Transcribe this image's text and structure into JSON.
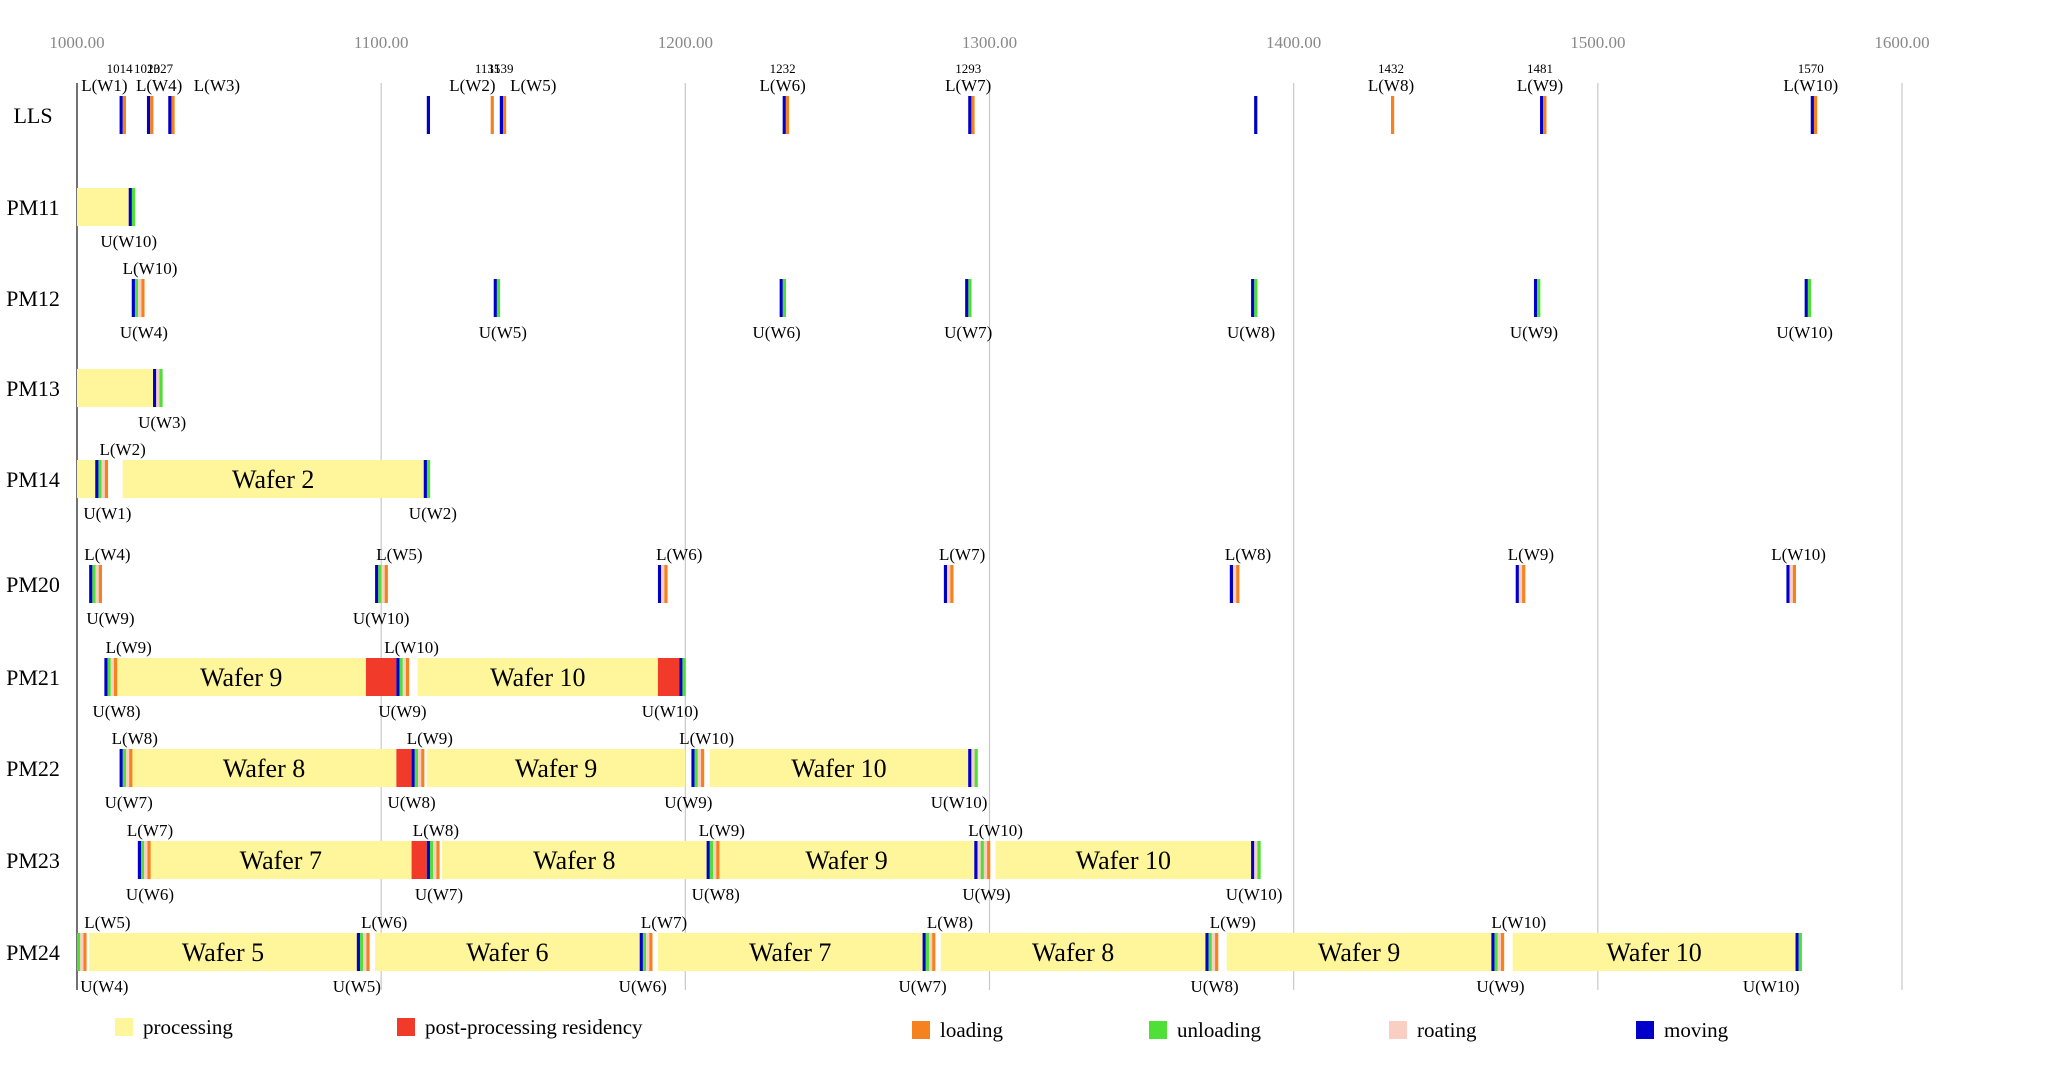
{
  "chart_data": {
    "type": "gantt",
    "xlim": [
      1000,
      1600
    ],
    "x_ticks": [
      "1000.00",
      "1100.00",
      "1200.00",
      "1300.00",
      "1400.00",
      "1500.00",
      "1600.00"
    ],
    "x_tick_values": [
      1000,
      1100,
      1200,
      1300,
      1400,
      1500,
      1600
    ],
    "grid": "vertical",
    "rows": [
      "LLS",
      "PM11",
      "PM12",
      "PM13",
      "PM14",
      "PM20",
      "PM21",
      "PM22",
      "PM23",
      "PM24"
    ],
    "colors": {
      "processing": "#FFF59A",
      "residency": "#F23A2B",
      "loading": "#F5821F",
      "unloading": "#4EE037",
      "rotating": "#F9CFC4",
      "moving": "#0000C8"
    },
    "legend": [
      {
        "key": "processing",
        "label": "processing"
      },
      {
        "key": "residency",
        "label": "post-processing residency"
      },
      {
        "key": "loading",
        "label": "loading"
      },
      {
        "key": "unloading",
        "label": "unloading"
      },
      {
        "key": "rotating",
        "label": "roating"
      },
      {
        "key": "moving",
        "label": "moving"
      }
    ],
    "segments": [
      {
        "row": "PM11",
        "start": 1000,
        "end": 1017,
        "type": "processing"
      },
      {
        "row": "PM13",
        "start": 1000,
        "end": 1026,
        "type": "processing"
      },
      {
        "row": "PM14",
        "start": 1000,
        "end": 1007,
        "type": "processing"
      },
      {
        "row": "PM14",
        "start": 1015,
        "end": 1114,
        "type": "processing",
        "label": "Wafer 2"
      },
      {
        "row": "PM21",
        "start": 1013,
        "end": 1095,
        "type": "processing",
        "label": "Wafer 9"
      },
      {
        "row": "PM21",
        "start": 1095,
        "end": 1105,
        "type": "residency"
      },
      {
        "row": "PM21",
        "start": 1112,
        "end": 1191,
        "type": "processing",
        "label": "Wafer 10"
      },
      {
        "row": "PM21",
        "start": 1191,
        "end": 1198,
        "type": "residency"
      },
      {
        "row": "PM22",
        "start": 1018,
        "end": 1105,
        "type": "processing",
        "label": "Wafer 8"
      },
      {
        "row": "PM22",
        "start": 1105,
        "end": 1110,
        "type": "residency"
      },
      {
        "row": "PM22",
        "start": 1115,
        "end": 1200,
        "type": "processing",
        "label": "Wafer 9"
      },
      {
        "row": "PM22",
        "start": 1208,
        "end": 1293,
        "type": "processing",
        "label": "Wafer 10"
      },
      {
        "row": "PM23",
        "start": 1024,
        "end": 1110,
        "type": "processing",
        "label": "Wafer 7"
      },
      {
        "row": "PM23",
        "start": 1110,
        "end": 1115,
        "type": "residency"
      },
      {
        "row": "PM23",
        "start": 1120,
        "end": 1207,
        "type": "processing",
        "label": "Wafer 8"
      },
      {
        "row": "PM23",
        "start": 1211,
        "end": 1295,
        "type": "processing",
        "label": "Wafer 9"
      },
      {
        "row": "PM23",
        "start": 1302,
        "end": 1386,
        "type": "processing",
        "label": "Wafer 10"
      },
      {
        "row": "PM24",
        "start": 1000,
        "end": 1002,
        "type": "processing"
      },
      {
        "row": "PM24",
        "start": 1004,
        "end": 1092,
        "type": "processing",
        "label": "Wafer 5"
      },
      {
        "row": "PM24",
        "start": 1098,
        "end": 1185,
        "type": "processing",
        "label": "Wafer 6"
      },
      {
        "row": "PM24",
        "start": 1191,
        "end": 1278,
        "type": "processing",
        "label": "Wafer 7"
      },
      {
        "row": "PM24",
        "start": 1284,
        "end": 1371,
        "type": "processing",
        "label": "Wafer 8"
      },
      {
        "row": "PM24",
        "start": 1378,
        "end": 1465,
        "type": "processing",
        "label": "Wafer 9"
      },
      {
        "row": "PM24",
        "start": 1472,
        "end": 1565,
        "type": "processing",
        "label": "Wafer 10"
      }
    ],
    "events": [
      {
        "row": "LLS",
        "t": 1014,
        "seq": [
          "moving",
          "loading"
        ]
      },
      {
        "row": "LLS",
        "t": 1023,
        "seq": [
          "moving",
          "loading"
        ]
      },
      {
        "row": "LLS",
        "t": 1030,
        "seq": [
          "moving",
          "loading"
        ]
      },
      {
        "row": "LLS",
        "t": 1115,
        "seq": [
          "moving"
        ]
      },
      {
        "row": "LLS",
        "t": 1136,
        "seq": [
          "loading"
        ]
      },
      {
        "row": "LLS",
        "t": 1139,
        "seq": [
          "moving",
          "loading"
        ]
      },
      {
        "row": "LLS",
        "t": 1232,
        "seq": [
          "moving",
          "loading"
        ]
      },
      {
        "row": "LLS",
        "t": 1293,
        "seq": [
          "moving",
          "loading"
        ]
      },
      {
        "row": "LLS",
        "t": 1387,
        "seq": [
          "moving"
        ]
      },
      {
        "row": "LLS",
        "t": 1432,
        "seq": [
          "loading"
        ]
      },
      {
        "row": "LLS",
        "t": 1481,
        "seq": [
          "moving",
          "loading"
        ]
      },
      {
        "row": "LLS",
        "t": 1570,
        "seq": [
          "moving",
          "loading"
        ]
      },
      {
        "row": "PM11",
        "t": 1017,
        "seq": [
          "moving",
          "unloading"
        ]
      },
      {
        "row": "PM12",
        "t": 1018,
        "seq": [
          "moving",
          "unloading",
          "rotating",
          "loading"
        ]
      },
      {
        "row": "PM12",
        "t": 1137,
        "seq": [
          "moving",
          "unloading"
        ]
      },
      {
        "row": "PM12",
        "t": 1231,
        "seq": [
          "moving",
          "unloading"
        ]
      },
      {
        "row": "PM12",
        "t": 1292,
        "seq": [
          "moving",
          "unloading"
        ]
      },
      {
        "row": "PM12",
        "t": 1386,
        "seq": [
          "moving",
          "unloading"
        ]
      },
      {
        "row": "PM12",
        "t": 1479,
        "seq": [
          "moving",
          "unloading"
        ]
      },
      {
        "row": "PM12",
        "t": 1568,
        "seq": [
          "moving",
          "unloading"
        ]
      },
      {
        "row": "PM13",
        "t": 1025,
        "seq": [
          "moving",
          "rotating",
          "unloading"
        ]
      },
      {
        "row": "PM14",
        "t": 1006,
        "seq": [
          "moving",
          "unloading",
          "rotating",
          "loading"
        ]
      },
      {
        "row": "PM14",
        "t": 1114,
        "seq": [
          "moving",
          "unloading"
        ]
      },
      {
        "row": "PM20",
        "t": 1004,
        "seq": [
          "moving",
          "unloading",
          "rotating",
          "loading"
        ]
      },
      {
        "row": "PM20",
        "t": 1098,
        "seq": [
          "moving",
          "unloading",
          "rotating",
          "loading"
        ]
      },
      {
        "row": "PM20",
        "t": 1191,
        "seq": [
          "moving",
          "rotating",
          "loading"
        ]
      },
      {
        "row": "PM20",
        "t": 1285,
        "seq": [
          "moving",
          "rotating",
          "loading"
        ]
      },
      {
        "row": "PM20",
        "t": 1379,
        "seq": [
          "moving",
          "rotating",
          "loading"
        ]
      },
      {
        "row": "PM20",
        "t": 1473,
        "seq": [
          "moving",
          "rotating",
          "loading"
        ]
      },
      {
        "row": "PM20",
        "t": 1562,
        "seq": [
          "moving",
          "rotating",
          "loading"
        ]
      },
      {
        "row": "PM21",
        "t": 1009,
        "seq": [
          "moving",
          "unloading",
          "rotating",
          "loading"
        ]
      },
      {
        "row": "PM21",
        "t": 1105,
        "seq": [
          "moving",
          "unloading",
          "rotating",
          "loading"
        ]
      },
      {
        "row": "PM21",
        "t": 1198,
        "seq": [
          "moving",
          "unloading"
        ]
      },
      {
        "row": "PM22",
        "t": 1014,
        "seq": [
          "moving",
          "unloading",
          "rotating",
          "loading"
        ]
      },
      {
        "row": "PM22",
        "t": 1110,
        "seq": [
          "moving",
          "unloading",
          "rotating",
          "loading"
        ]
      },
      {
        "row": "PM22",
        "t": 1202,
        "seq": [
          "moving",
          "unloading",
          "rotating",
          "loading"
        ]
      },
      {
        "row": "PM22",
        "t": 1293,
        "seq": [
          "moving",
          "rotating",
          "unloading"
        ]
      },
      {
        "row": "PM23",
        "t": 1020,
        "seq": [
          "moving",
          "unloading",
          "rotating",
          "loading"
        ]
      },
      {
        "row": "PM23",
        "t": 1115,
        "seq": [
          "moving",
          "unloading",
          "rotating",
          "loading"
        ]
      },
      {
        "row": "PM23",
        "t": 1207,
        "seq": [
          "moving",
          "unloading",
          "rotating",
          "loading"
        ]
      },
      {
        "row": "PM23",
        "t": 1295,
        "seq": [
          "moving",
          "rotating",
          "unloading",
          "rotating",
          "loading"
        ]
      },
      {
        "row": "PM23",
        "t": 1386,
        "seq": [
          "moving",
          "rotating",
          "unloading"
        ]
      },
      {
        "row": "PM24",
        "t": 1000,
        "seq": [
          "unloading",
          "rotating",
          "loading"
        ]
      },
      {
        "row": "PM24",
        "t": 1092,
        "seq": [
          "moving",
          "unloading",
          "rotating",
          "loading"
        ]
      },
      {
        "row": "PM24",
        "t": 1185,
        "seq": [
          "moving",
          "unloading",
          "rotating",
          "loading"
        ]
      },
      {
        "row": "PM24",
        "t": 1278,
        "seq": [
          "moving",
          "unloading",
          "rotating",
          "loading"
        ]
      },
      {
        "row": "PM24",
        "t": 1371,
        "seq": [
          "moving",
          "unloading",
          "rotating",
          "loading"
        ]
      },
      {
        "row": "PM24",
        "t": 1465,
        "seq": [
          "moving",
          "unloading",
          "rotating",
          "loading"
        ]
      },
      {
        "row": "PM24",
        "t": 1565,
        "seq": [
          "moving",
          "unloading"
        ]
      }
    ],
    "annotations": [
      {
        "row": "LLS",
        "t": 1014,
        "pos": "above-small",
        "text": "1014"
      },
      {
        "row": "LLS",
        "t": 1023,
        "pos": "above-small",
        "text": "1023"
      },
      {
        "row": "LLS",
        "t": 1027,
        "pos": "above-small",
        "text": "1027",
        "dx": 1
      },
      {
        "row": "LLS",
        "t": 1135,
        "pos": "above-small",
        "text": "1135"
      },
      {
        "row": "LLS",
        "t": 1139,
        "pos": "above-small",
        "text": "1139",
        "dx": 1
      },
      {
        "row": "LLS",
        "t": 1232,
        "pos": "above-small",
        "text": "1232"
      },
      {
        "row": "LLS",
        "t": 1293,
        "pos": "above-small",
        "text": "1293"
      },
      {
        "row": "LLS",
        "t": 1432,
        "pos": "above-small",
        "text": "1432"
      },
      {
        "row": "LLS",
        "t": 1481,
        "pos": "above-small",
        "text": "1481"
      },
      {
        "row": "LLS",
        "t": 1570,
        "pos": "above-small",
        "text": "1570"
      },
      {
        "row": "LLS",
        "t": 1009,
        "pos": "above",
        "text": "L(W1)"
      },
      {
        "row": "LLS",
        "t": 1027,
        "pos": "above",
        "text": "L(W4)"
      },
      {
        "row": "LLS",
        "t": 1046,
        "pos": "above",
        "text": "L(W3)"
      },
      {
        "row": "LLS",
        "t": 1130,
        "pos": "above",
        "text": "L(W2)"
      },
      {
        "row": "LLS",
        "t": 1150,
        "pos": "above",
        "text": "L(W5)"
      },
      {
        "row": "LLS",
        "t": 1232,
        "pos": "above",
        "text": "L(W6)"
      },
      {
        "row": "LLS",
        "t": 1293,
        "pos": "above",
        "text": "L(W7)"
      },
      {
        "row": "LLS",
        "t": 1432,
        "pos": "above",
        "text": "L(W8)"
      },
      {
        "row": "LLS",
        "t": 1481,
        "pos": "above",
        "text": "L(W9)"
      },
      {
        "row": "LLS",
        "t": 1570,
        "pos": "above",
        "text": "L(W10)"
      },
      {
        "row": "PM11",
        "t": 1017,
        "pos": "below",
        "text": "U(W10)"
      },
      {
        "row": "PM12",
        "t": 1024,
        "pos": "above",
        "text": "L(W10)"
      },
      {
        "row": "PM12",
        "t": 1022,
        "pos": "below",
        "text": "U(W4)"
      },
      {
        "row": "PM12",
        "t": 1140,
        "pos": "below",
        "text": "U(W5)"
      },
      {
        "row": "PM12",
        "t": 1230,
        "pos": "below",
        "text": "U(W6)"
      },
      {
        "row": "PM12",
        "t": 1293,
        "pos": "below",
        "text": "U(W7)"
      },
      {
        "row": "PM12",
        "t": 1386,
        "pos": "below",
        "text": "U(W8)"
      },
      {
        "row": "PM12",
        "t": 1479,
        "pos": "below",
        "text": "U(W9)"
      },
      {
        "row": "PM12",
        "t": 1568,
        "pos": "below",
        "text": "U(W10)"
      },
      {
        "row": "PM13",
        "t": 1028,
        "pos": "below",
        "text": "U(W3)"
      },
      {
        "row": "PM14",
        "t": 1015,
        "pos": "above",
        "text": "L(W2)"
      },
      {
        "row": "PM14",
        "t": 1010,
        "pos": "below",
        "text": "U(W1)"
      },
      {
        "row": "PM14",
        "t": 1117,
        "pos": "below",
        "text": "U(W2)"
      },
      {
        "row": "PM20",
        "t": 1010,
        "pos": "above",
        "text": "L(W4)"
      },
      {
        "row": "PM20",
        "t": 1106,
        "pos": "above",
        "text": "L(W5)"
      },
      {
        "row": "PM20",
        "t": 1198,
        "pos": "above",
        "text": "L(W6)"
      },
      {
        "row": "PM20",
        "t": 1291,
        "pos": "above",
        "text": "L(W7)"
      },
      {
        "row": "PM20",
        "t": 1385,
        "pos": "above",
        "text": "L(W8)"
      },
      {
        "row": "PM20",
        "t": 1478,
        "pos": "above",
        "text": "L(W9)"
      },
      {
        "row": "PM20",
        "t": 1566,
        "pos": "above",
        "text": "L(W10)"
      },
      {
        "row": "PM20",
        "t": 1011,
        "pos": "below",
        "text": "U(W9)"
      },
      {
        "row": "PM20",
        "t": 1100,
        "pos": "below",
        "text": "U(W10)"
      },
      {
        "row": "PM21",
        "t": 1017,
        "pos": "above",
        "text": "L(W9)"
      },
      {
        "row": "PM21",
        "t": 1110,
        "pos": "above",
        "text": "L(W10)"
      },
      {
        "row": "PM21",
        "t": 1013,
        "pos": "below",
        "text": "U(W8)"
      },
      {
        "row": "PM21",
        "t": 1107,
        "pos": "below",
        "text": "U(W9)"
      },
      {
        "row": "PM21",
        "t": 1195,
        "pos": "below",
        "text": "U(W10)"
      },
      {
        "row": "PM22",
        "t": 1019,
        "pos": "above",
        "text": "L(W8)"
      },
      {
        "row": "PM22",
        "t": 1116,
        "pos": "above",
        "text": "L(W9)"
      },
      {
        "row": "PM22",
        "t": 1207,
        "pos": "above",
        "text": "L(W10)"
      },
      {
        "row": "PM22",
        "t": 1017,
        "pos": "below",
        "text": "U(W7)"
      },
      {
        "row": "PM22",
        "t": 1110,
        "pos": "below",
        "text": "U(W8)"
      },
      {
        "row": "PM22",
        "t": 1201,
        "pos": "below",
        "text": "U(W9)"
      },
      {
        "row": "PM22",
        "t": 1290,
        "pos": "below",
        "text": "U(W10)"
      },
      {
        "row": "PM23",
        "t": 1024,
        "pos": "above",
        "text": "L(W7)"
      },
      {
        "row": "PM23",
        "t": 1118,
        "pos": "above",
        "text": "L(W8)"
      },
      {
        "row": "PM23",
        "t": 1212,
        "pos": "above",
        "text": "L(W9)"
      },
      {
        "row": "PM23",
        "t": 1302,
        "pos": "above",
        "text": "L(W10)"
      },
      {
        "row": "PM23",
        "t": 1024,
        "pos": "below",
        "text": "U(W6)"
      },
      {
        "row": "PM23",
        "t": 1119,
        "pos": "below",
        "text": "U(W7)"
      },
      {
        "row": "PM23",
        "t": 1210,
        "pos": "below",
        "text": "U(W8)"
      },
      {
        "row": "PM23",
        "t": 1299,
        "pos": "below",
        "text": "U(W9)"
      },
      {
        "row": "PM23",
        "t": 1387,
        "pos": "below",
        "text": "U(W10)"
      },
      {
        "row": "PM24",
        "t": 1010,
        "pos": "above",
        "text": "L(W5)"
      },
      {
        "row": "PM24",
        "t": 1101,
        "pos": "above",
        "text": "L(W6)"
      },
      {
        "row": "PM24",
        "t": 1193,
        "pos": "above",
        "text": "L(W7)"
      },
      {
        "row": "PM24",
        "t": 1287,
        "pos": "above",
        "text": "L(W8)"
      },
      {
        "row": "PM24",
        "t": 1380,
        "pos": "above",
        "text": "L(W9)"
      },
      {
        "row": "PM24",
        "t": 1474,
        "pos": "above",
        "text": "L(W10)"
      },
      {
        "row": "PM24",
        "t": 1009,
        "pos": "below",
        "text": "U(W4)"
      },
      {
        "row": "PM24",
        "t": 1092,
        "pos": "below",
        "text": "U(W5)"
      },
      {
        "row": "PM24",
        "t": 1186,
        "pos": "below",
        "text": "U(W6)"
      },
      {
        "row": "PM24",
        "t": 1278,
        "pos": "below",
        "text": "U(W7)"
      },
      {
        "row": "PM24",
        "t": 1374,
        "pos": "below",
        "text": "U(W8)"
      },
      {
        "row": "PM24",
        "t": 1468,
        "pos": "below",
        "text": "U(W9)"
      },
      {
        "row": "PM24",
        "t": 1557,
        "pos": "below",
        "text": "U(W10)"
      }
    ]
  }
}
